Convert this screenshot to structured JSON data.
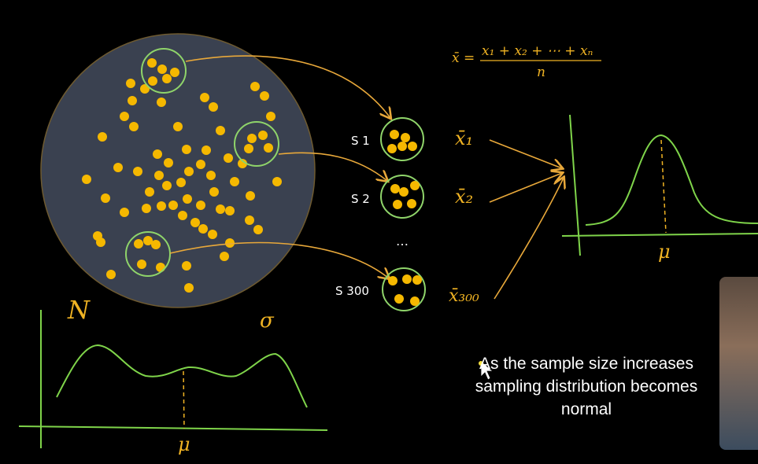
{
  "formula": {
    "lhs": "x̄ =",
    "numerator": "x₁ + x₂ + ⋯ + xₙ",
    "denominator": "n"
  },
  "samples": [
    {
      "label": "S 1",
      "mean": "x̄₁"
    },
    {
      "label": "S 2",
      "mean": "x̄₂"
    },
    {
      "label": "S 300",
      "mean": "x̄₃₀₀"
    }
  ],
  "ellipsis": "…",
  "population": {
    "size_label": "N",
    "std_label": "σ",
    "mean_label": "μ"
  },
  "sampling_dist": {
    "mean_label": "μ"
  },
  "caption": [
    "As the sample size increases",
    "sampling distribution becomes",
    "normal"
  ],
  "colors": {
    "background": "#000000",
    "population_fill": "#3a4150",
    "dot": "#f5b800",
    "arrow": "#e8a83a",
    "curve": "#7fd44a",
    "circle": "#8fd46a",
    "text": "#ffffff"
  }
}
